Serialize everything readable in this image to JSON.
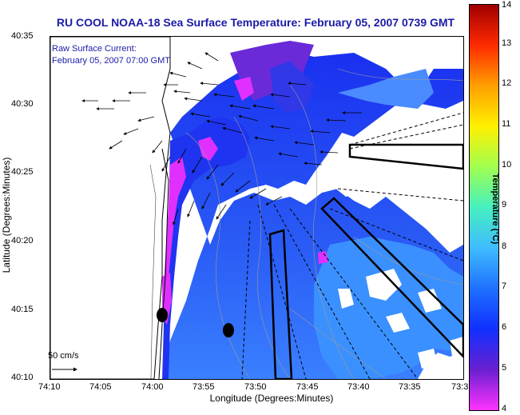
{
  "title": "RU COOL  NOAA-18  Sea Surface Temperature:  February 05, 2007 0739 GMT",
  "legend": {
    "line1": "Raw Surface Current:",
    "line2": "February 05, 2007 07:00 GMT"
  },
  "scale_label": "50 cm/s",
  "axes": {
    "xlabel": "Longitude (Degrees:Minutes)",
    "ylabel": "Latitude (Degrees:Minutes)",
    "xticks": [
      "74:10",
      "74:05",
      "74:00",
      "73:55",
      "73:50",
      "73:45",
      "73:40",
      "73:35",
      "73:3"
    ],
    "yticks": [
      "40:35",
      "40:30",
      "40:25",
      "40:20",
      "40:15",
      "40:10"
    ]
  },
  "colorbar": {
    "title": "Temperature (°C)",
    "ticks": [
      "14",
      "13",
      "12",
      "11",
      "10",
      "9",
      "8",
      "7",
      "6",
      "5",
      "4"
    ],
    "min": 4,
    "max": 14,
    "colors": [
      "#ff33ff",
      "#6a1fd0",
      "#1030ff",
      "#1f70ff",
      "#3fbcff",
      "#46f0c0",
      "#a0ff50",
      "#fff000",
      "#ffa000",
      "#ff2a00",
      "#a00000"
    ]
  },
  "map": {
    "land_color": "#ffffff",
    "water_color": "#1a3cf0",
    "coast_color": "#000000",
    "arrow_color": "#000000"
  }
}
